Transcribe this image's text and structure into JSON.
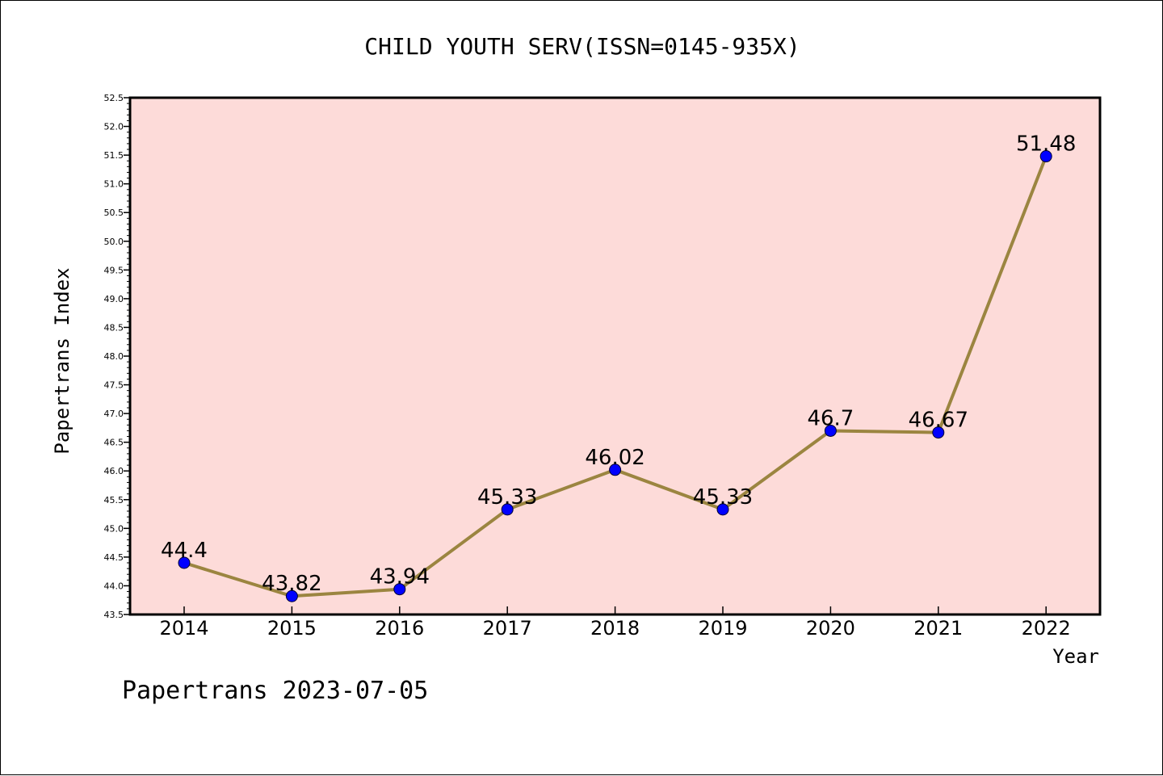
{
  "chart_data": {
    "type": "line",
    "title": "CHILD YOUTH SERV(ISSN=0145-935X)",
    "xlabel": "Year",
    "ylabel": "Papertrans Index",
    "x": [
      "2014",
      "2015",
      "2016",
      "2017",
      "2018",
      "2019",
      "2020",
      "2021",
      "2022"
    ],
    "series": [
      {
        "values": [
          44.4,
          43.82,
          43.94,
          45.33,
          46.02,
          45.33,
          46.7,
          46.67,
          51.48
        ],
        "labels": [
          "44.4",
          "43.82",
          "43.94",
          "45.33",
          "46.02",
          "45.33",
          "46.7",
          "46.67",
          "51.48"
        ],
        "line_color": "#9b8540",
        "marker_color": "#0000ff"
      }
    ],
    "y_ticks": [
      "43.5",
      "44.0",
      "44.5",
      "45.0",
      "45.5",
      "46.0",
      "46.5",
      "47.0",
      "47.5",
      "48.0",
      "48.5",
      "49.0",
      "49.5",
      "50.0",
      "50.5",
      "51.0",
      "51.5",
      "52.0",
      "52.5"
    ],
    "ylim": [
      43.5,
      52.5
    ],
    "plot_background": "#fddbd9",
    "grid": false,
    "legend": "none"
  },
  "footer": {
    "credit": "Papertrans 2023-07-05"
  }
}
